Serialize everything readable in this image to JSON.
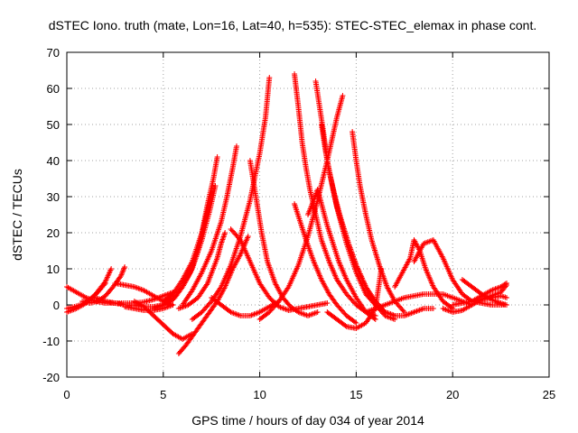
{
  "chart_data": {
    "type": "scatter",
    "title": "dSTEC Iono. truth (mate, Lon=16, Lat=40, h=535): STEC-STEC_elemax in phase cont.",
    "xlabel": "GPS time / hours of day 034 of year 2014",
    "ylabel": "dSTEC  / TECUs",
    "xlim": [
      0,
      25
    ],
    "ylim": [
      -20,
      70
    ],
    "xticks": [
      "0",
      "5",
      "10",
      "15",
      "20",
      "25"
    ],
    "yticks": [
      "-20",
      "-10",
      "0",
      "10",
      "20",
      "30",
      "40",
      "50",
      "60",
      "70"
    ],
    "grid": true,
    "marker": "+",
    "color": "#ff0000",
    "series": [
      {
        "x": [
          0.0,
          0.5,
          1.0,
          1.5,
          2.0,
          2.5,
          3.0,
          3.5,
          4.0,
          4.5,
          5.0,
          5.5
        ],
        "y": [
          5,
          3.5,
          2,
          1,
          0.5,
          0.5,
          0.5,
          0.5,
          0.8,
          1.5,
          2.5,
          3.5
        ]
      },
      {
        "x": [
          0.0,
          0.4,
          0.8,
          1.2,
          1.6,
          2.0
        ],
        "y": [
          -1,
          -0.5,
          0.2,
          1.5,
          3.5,
          6
        ]
      },
      {
        "x": [
          0.0,
          0.5,
          1.0,
          1.5,
          2.0,
          2.3
        ],
        "y": [
          -2,
          -1,
          0.5,
          3,
          6.5,
          10
        ]
      },
      {
        "x": [
          0.8,
          1.2,
          1.6,
          2.0,
          2.4,
          2.8,
          3.0
        ],
        "y": [
          1,
          0.5,
          1,
          2.5,
          5,
          8,
          10.5
        ]
      },
      {
        "x": [
          1.5,
          2.0,
          2.5,
          3.0,
          3.5,
          4.0,
          4.5,
          5.0
        ],
        "y": [
          2,
          1,
          0.5,
          0,
          0,
          -0.5,
          -0.5,
          0
        ]
      },
      {
        "x": [
          2.5,
          3.0,
          3.5,
          4.0,
          4.5,
          5.0,
          5.5
        ],
        "y": [
          6,
          5.5,
          5,
          4,
          2.5,
          1,
          0
        ]
      },
      {
        "x": [
          3.0,
          3.5,
          4.0,
          4.5,
          5.0,
          5.5
        ],
        "y": [
          -0.5,
          -1,
          -1.5,
          -1.5,
          -1,
          0
        ]
      },
      {
        "x": [
          3.5,
          4.0,
          4.5,
          5.0,
          5.5,
          6.0,
          6.5
        ],
        "y": [
          1,
          -0.5,
          -3,
          -5.5,
          -8,
          -9.5,
          -8
        ]
      },
      {
        "x": [
          5.8,
          6.2,
          6.6,
          7.0,
          7.4,
          7.8,
          8.2,
          8.6,
          9.0,
          9.4
        ],
        "y": [
          -13.5,
          -11,
          -8,
          -5,
          -2,
          1,
          5,
          10,
          14,
          19
        ]
      },
      {
        "x": [
          5.0,
          5.5,
          6.0,
          6.5,
          7.0,
          7.3,
          7.6,
          7.8
        ],
        "y": [
          1,
          3,
          7,
          12,
          20,
          28,
          35,
          41
        ]
      },
      {
        "x": [
          4.5,
          5.0,
          5.5,
          6.0,
          6.5,
          7.0,
          7.4,
          7.7
        ],
        "y": [
          -1,
          0,
          2,
          5,
          10,
          18,
          26,
          33
        ]
      },
      {
        "x": [
          5.2,
          5.6,
          6.0,
          6.4,
          6.8,
          7.2,
          7.5
        ],
        "y": [
          0,
          2,
          5,
          9,
          15,
          24,
          31
        ]
      },
      {
        "x": [
          6.0,
          6.5,
          7.0,
          7.5,
          8.0,
          8.3,
          8.6,
          8.8
        ],
        "y": [
          0,
          4,
          9,
          15,
          23,
          30,
          38,
          44
        ]
      },
      {
        "x": [
          5.8,
          6.3,
          6.8,
          7.3,
          7.8,
          8.0,
          8.2
        ],
        "y": [
          -1,
          0,
          2,
          6,
          13,
          17,
          20
        ]
      },
      {
        "x": [
          6.5,
          7.0,
          7.5,
          8.0,
          8.5,
          9.0,
          9.5,
          10.0,
          10.3,
          10.5
        ],
        "y": [
          -4,
          -2,
          1,
          5,
          11,
          19,
          29,
          42,
          52,
          63
        ]
      },
      {
        "x": [
          8.5,
          9.0,
          9.5,
          10.0,
          10.5,
          11.0,
          11.5,
          12.0,
          12.5,
          13.0,
          13.5
        ],
        "y": [
          21,
          18,
          12,
          6,
          2,
          -0.5,
          -1.5,
          -1,
          -0.5,
          0,
          0.5
        ]
      },
      {
        "x": [
          7.5,
          8.0,
          8.5,
          9.0,
          9.5,
          10.0,
          10.5,
          11.0
        ],
        "y": [
          2,
          0,
          -2,
          -3,
          -3,
          -2,
          -0.5,
          1
        ]
      },
      {
        "x": [
          9.5,
          9.8,
          10.1,
          10.4,
          10.8,
          11.2,
          11.6,
          12.0,
          12.5,
          13.0
        ],
        "y": [
          40,
          30,
          20,
          12,
          6,
          2,
          -0.5,
          -2,
          -3,
          -2
        ]
      },
      {
        "x": [
          10.0,
          10.5,
          11.0,
          11.5,
          12.0,
          12.5,
          13.0,
          13.5,
          14.0,
          14.3
        ],
        "y": [
          -4,
          -2,
          1,
          5,
          11,
          19,
          29,
          40,
          52,
          58
        ]
      },
      {
        "x": [
          11.8,
          12.0,
          12.2,
          12.4,
          12.6,
          12.9,
          13.2,
          13.6,
          14.0,
          14.5,
          15.0,
          15.5,
          16.0
        ],
        "y": [
          64,
          55,
          45,
          38,
          32,
          25,
          18,
          12,
          7,
          3,
          0,
          -2,
          -3
        ]
      },
      {
        "x": [
          11.8,
          12.1,
          12.4,
          12.8,
          13.2,
          13.6,
          14.0,
          14.5,
          15.0
        ],
        "y": [
          28,
          23,
          18,
          12,
          7,
          3,
          0,
          -3,
          -5
        ]
      },
      {
        "x": [
          12.5,
          12.8,
          13.0,
          13.2,
          13.5,
          13.8,
          14.1,
          14.5,
          15.0,
          15.5,
          16.0
        ],
        "y": [
          25,
          29,
          32,
          28,
          22,
          17,
          12,
          7,
          2,
          -2,
          -4
        ]
      },
      {
        "x": [
          12.9,
          13.1,
          13.3,
          13.5,
          13.8,
          14.1,
          14.5,
          15.0,
          15.5,
          16.0
        ],
        "y": [
          62,
          55,
          48,
          40,
          32,
          25,
          17,
          9,
          3,
          0
        ]
      },
      {
        "x": [
          13.2,
          13.4,
          13.6,
          13.9,
          14.2,
          14.6,
          15.0,
          15.5,
          16.0,
          16.5,
          17.0
        ],
        "y": [
          50,
          43,
          37,
          30,
          24,
          17,
          11,
          5,
          0,
          -3,
          -4
        ]
      },
      {
        "x": [
          13.8,
          14.0,
          14.3,
          14.6,
          15.0,
          15.5,
          16.0,
          16.5,
          17.0
        ],
        "y": [
          32,
          27,
          22,
          17,
          11,
          5,
          1,
          -2,
          -3
        ]
      },
      {
        "x": [
          14.8,
          15.0,
          15.2,
          15.5,
          15.8,
          16.2,
          16.6,
          17.0,
          17.5
        ],
        "y": [
          48,
          40,
          33,
          25,
          18,
          11,
          5,
          1,
          -2
        ]
      },
      {
        "x": [
          13.5,
          14.0,
          14.5,
          15.0,
          15.5,
          16.0,
          16.3
        ],
        "y": [
          -2,
          -4,
          -6,
          -6.5,
          -5,
          -1,
          10
        ]
      },
      {
        "x": [
          15.5,
          16.0,
          16.5,
          17.0,
          17.5,
          18.0,
          18.5,
          19.0
        ],
        "y": [
          3,
          0,
          -2,
          -3,
          -3,
          -2,
          -1,
          -1
        ]
      },
      {
        "x": [
          17.0,
          17.5,
          17.8,
          18.0,
          18.3,
          18.6,
          19.0,
          19.5,
          20.0
        ],
        "y": [
          5,
          10,
          13,
          18,
          15,
          10,
          5,
          1,
          -1
        ]
      },
      {
        "x": [
          18.0,
          18.5,
          19.0,
          19.5,
          20.0,
          20.5,
          21.0,
          21.5,
          22.0,
          22.7
        ],
        "y": [
          12,
          17,
          18,
          13,
          7,
          3,
          1,
          0.5,
          0,
          0
        ]
      },
      {
        "x": [
          15.5,
          16.5,
          17.5,
          18.5,
          19.5,
          20.5,
          21.0
        ],
        "y": [
          -2,
          0,
          2,
          3,
          3,
          1,
          0
        ]
      },
      {
        "x": [
          19.5,
          20.0,
          20.5,
          21.0,
          21.5,
          22.0,
          22.5,
          22.8
        ],
        "y": [
          -1,
          -2,
          -1.5,
          0,
          1.5,
          2.5,
          3.5,
          5.5
        ]
      },
      {
        "x": [
          20.5,
          21.0,
          21.5,
          22.0,
          22.5,
          22.8
        ],
        "y": [
          7,
          5,
          3,
          1.5,
          0.5,
          0
        ]
      },
      {
        "x": [
          21.0,
          21.5,
          22.0,
          22.5,
          22.8
        ],
        "y": [
          1,
          2.5,
          4,
          5,
          6
        ]
      },
      {
        "x": [
          20.0,
          20.5,
          21.0,
          21.5,
          22.0,
          22.5,
          22.8
        ],
        "y": [
          0,
          0.5,
          1,
          1.5,
          2,
          2.5,
          2
        ]
      }
    ]
  }
}
